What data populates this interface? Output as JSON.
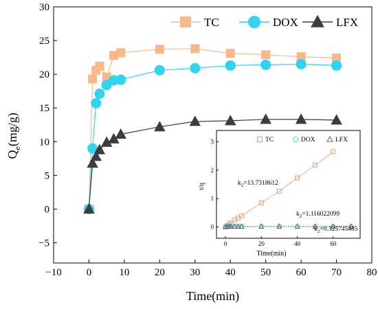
{
  "chart_data": [
    {
      "type": "scatter",
      "xlabel": "Time(min)",
      "ylabel": "Q",
      "ylabel_sub": "e",
      "ylabel_unit": "(mg/g)",
      "xlim": [
        -10,
        80
      ],
      "ylim": [
        -8,
        30
      ],
      "xticks": [
        -10,
        0,
        10,
        20,
        30,
        40,
        50,
        60,
        70,
        80
      ],
      "yticks": [
        -5,
        0,
        5,
        10,
        15,
        20,
        25,
        30
      ],
      "xtick_labels": [
        "−10",
        "0",
        "10",
        "20",
        "30",
        "40",
        "50",
        "60",
        "70",
        "80"
      ],
      "ytick_labels": [
        "−5",
        "0",
        "5",
        "10",
        "15",
        "20",
        "25",
        "30"
      ],
      "grid": false,
      "legend_position": "top-right",
      "series": [
        {
          "name": "TC",
          "marker": "square",
          "color": "#f7b98c",
          "x": [
            0,
            1,
            2,
            3,
            5,
            7,
            9,
            20,
            30,
            40,
            50,
            60,
            70
          ],
          "y": [
            0,
            19.3,
            20.6,
            21.2,
            19.6,
            22.8,
            23.2,
            23.7,
            23.8,
            23.1,
            22.9,
            22.6,
            22.4
          ]
        },
        {
          "name": "DOX",
          "marker": "circle",
          "color": "#2fd4f0",
          "x": [
            0,
            1,
            2,
            3,
            5,
            7,
            9,
            20,
            30,
            40,
            50,
            60,
            70
          ],
          "y": [
            0,
            9.0,
            15.7,
            17.1,
            18.4,
            19.1,
            19.2,
            20.6,
            20.9,
            21.3,
            21.4,
            21.5,
            21.3
          ]
        },
        {
          "name": "LFX",
          "marker": "triangle",
          "color": "#3c3c3c",
          "x": [
            0,
            1,
            2,
            3,
            5,
            7,
            9,
            20,
            30,
            40,
            50,
            60,
            70
          ],
          "y": [
            0,
            6.8,
            7.8,
            8.8,
            9.9,
            10.4,
            11.1,
            12.2,
            13.0,
            13.1,
            13.3,
            13.3,
            13.2
          ]
        }
      ]
    },
    {
      "type": "scatter",
      "inset": true,
      "xlabel": "Time(min)",
      "ylabel": "t/q",
      "xlim": [
        -5,
        75
      ],
      "ylim": [
        -0.4,
        3.4
      ],
      "xticks": [
        0,
        20,
        40,
        60
      ],
      "yticks": [
        0,
        1,
        2,
        3
      ],
      "xtick_labels": [
        "0",
        "20",
        "40",
        "60"
      ],
      "ytick_labels": [
        "0",
        "1",
        "2",
        "3"
      ],
      "grid": false,
      "legend_position": "top",
      "annotations": [
        {
          "text": "k",
          "sub": "2",
          "value": "=13.7318612"
        },
        {
          "text": "k",
          "sub": "2",
          "value": "=1.116022099"
        },
        {
          "text": "k",
          "sub": "2",
          "value": "=0.323745485"
        }
      ],
      "series": [
        {
          "name": "TC",
          "marker": "square-open",
          "color": "#e8a070",
          "x": [
            0,
            1,
            2,
            3,
            5,
            7,
            9,
            20,
            30,
            40,
            50,
            60
          ],
          "y": [
            0,
            0.05,
            0.1,
            0.14,
            0.25,
            0.31,
            0.39,
            0.85,
            1.26,
            1.73,
            2.18,
            2.65
          ]
        },
        {
          "name": "DOX",
          "marker": "circle-open",
          "color": "#4fcfe8",
          "x": [
            0,
            1,
            2,
            3,
            5,
            7,
            9,
            20,
            30,
            40,
            50,
            60,
            70
          ],
          "y": [
            0,
            0.02,
            0.02,
            0.03,
            0.03,
            0.03,
            0.03,
            0.03,
            0.03,
            0.03,
            0.03,
            0.03,
            0.03
          ]
        },
        {
          "name": "LFX",
          "marker": "triangle-open",
          "color": "#666666",
          "x": [
            0,
            1,
            2,
            3,
            5,
            7,
            9,
            20,
            30,
            40,
            50,
            60,
            70
          ],
          "y": [
            0,
            0.01,
            0.01,
            0.01,
            0.01,
            0.01,
            0.01,
            0.01,
            0.01,
            0.01,
            0.01,
            0.01,
            0.01
          ]
        }
      ]
    }
  ]
}
